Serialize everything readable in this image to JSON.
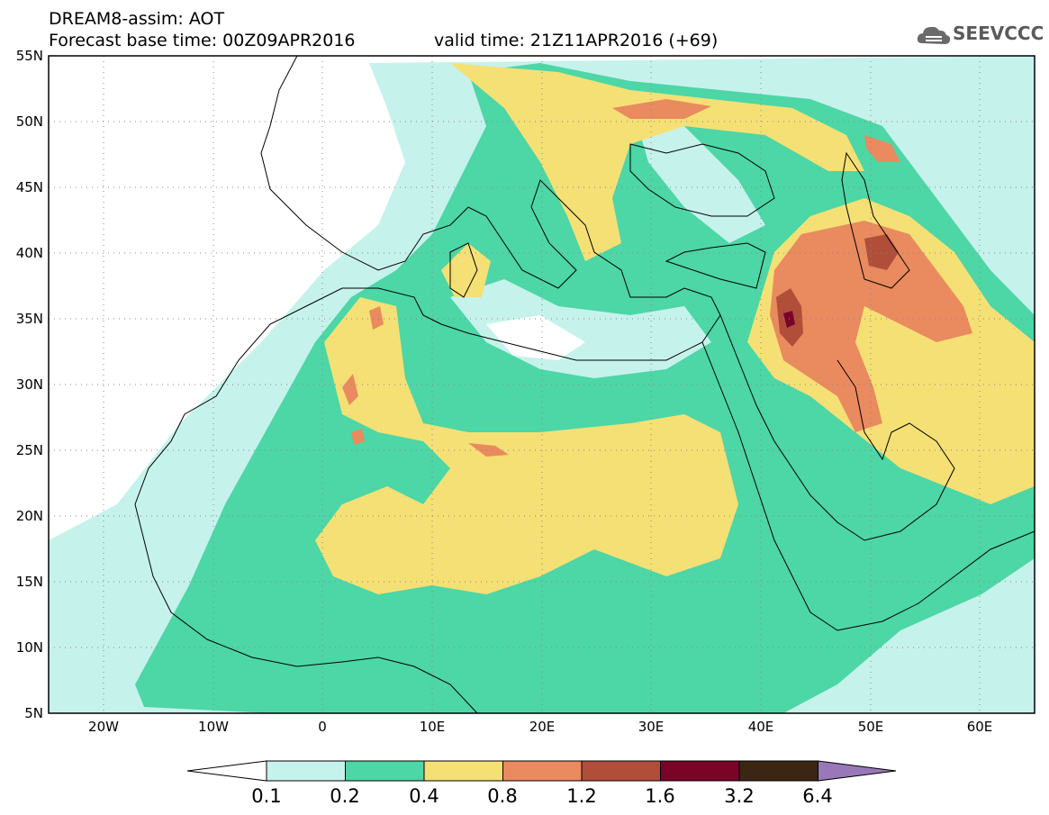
{
  "header": {
    "line1": "DREAM8-assim: AOT",
    "line2": "Forecast base time: 00Z09APR2016",
    "valid": "valid time: 21Z11APR2016 (+69)"
  },
  "logo": {
    "text": "SEEVCCC",
    "icon": "cloud-icon"
  },
  "axes": {
    "lat_labels": [
      "55N",
      "50N",
      "45N",
      "40N",
      "35N",
      "30N",
      "25N",
      "20N",
      "15N",
      "10N",
      "5N"
    ],
    "lon_labels": [
      "20W",
      "10W",
      "0",
      "10E",
      "20E",
      "30E",
      "40E",
      "50E",
      "60E"
    ],
    "lat_range": [
      5,
      55
    ],
    "lon_range": [
      -25,
      65
    ]
  },
  "legend": {
    "levels": [
      "0.1",
      "0.2",
      "0.4",
      "0.8",
      "1.2",
      "1.6",
      "3.2",
      "6.4"
    ],
    "colors": [
      "#ffffff",
      "#c6f2ec",
      "#4dd6a6",
      "#f5e075",
      "#e98a5f",
      "#b04e3a",
      "#7a0428",
      "#3a2612",
      "#9878b8"
    ]
  }
}
